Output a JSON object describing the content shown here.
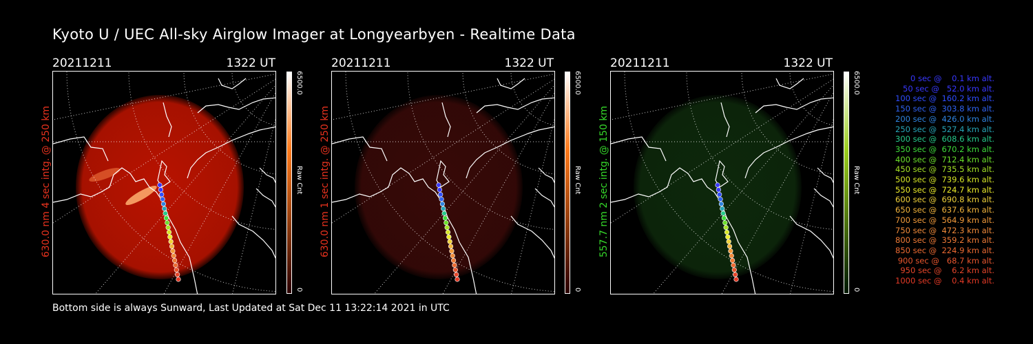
{
  "title": "Kyoto U / UEC All-sky Airglow Imager at Longyearbyen - Realtime Data",
  "footer": "Bottom side is always Sunward, Last Updated at Sat Dec 11 13:22:14 2021 in UTC",
  "panels": [
    {
      "date": "20211211",
      "time": "1322 UT",
      "side_label": "630.0 nm 4 sec intg. @ 250 km",
      "label_color": "#e8321e",
      "glow": "#c21400",
      "glow_opacity": 0.95,
      "colorbar": {
        "top": "6500.0",
        "bottom": "0",
        "unit": "Raw Cnt",
        "gradient_top": "#ffffff",
        "gradient_mid": "#ff7a1a",
        "gradient_bottom": "#2a0000"
      }
    },
    {
      "date": "20211211",
      "time": "1322 UT",
      "side_label": "630.0 nm 1 sec intg. @ 250 km",
      "label_color": "#e8321e",
      "glow": "#3a0a08",
      "glow_opacity": 0.95,
      "colorbar": {
        "top": "6500.0",
        "bottom": "0",
        "unit": "Raw Cnt",
        "gradient_top": "#ffffff",
        "gradient_mid": "#ff7a1a",
        "gradient_bottom": "#2a0000"
      }
    },
    {
      "date": "20211211",
      "time": "1322 UT",
      "side_label": "557.7 nm 2 sec intg. @ 150 km",
      "label_color": "#36d92a",
      "glow": "#0e2a0c",
      "glow_opacity": 0.95,
      "colorbar": {
        "top": "6500.0",
        "bottom": "0",
        "unit": "Raw Cnt",
        "gradient_top": "#ffffff",
        "gradient_mid": "#9ccf1e",
        "gradient_bottom": "#001800"
      }
    }
  ],
  "trajectory_legend": [
    {
      "text": "0 sec @    0.1 km alt.",
      "color": "#3838ff"
    },
    {
      "text": "50 sec @   52.0 km alt.",
      "color": "#3838ff"
    },
    {
      "text": "100 sec @  160.2 km alt.",
      "color": "#2f4dff"
    },
    {
      "text": "150 sec @  303.8 km alt.",
      "color": "#2f62f0"
    },
    {
      "text": "200 sec @  426.0 km alt.",
      "color": "#2f84e0"
    },
    {
      "text": "250 sec @  527.4 km alt.",
      "color": "#27a6b8"
    },
    {
      "text": "300 sec @  608.6 km alt.",
      "color": "#26c98a"
    },
    {
      "text": "350 sec @  670.2 km alt.",
      "color": "#3fdd3a"
    },
    {
      "text": "400 sec @  712.4 km alt.",
      "color": "#6be02a"
    },
    {
      "text": "450 sec @  735.5 km alt.",
      "color": "#a5e226"
    },
    {
      "text": "500 sec @  739.6 km alt.",
      "color": "#d6e626"
    },
    {
      "text": "550 sec @  724.7 km alt.",
      "color": "#ecec2a"
    },
    {
      "text": "600 sec @  690.8 km alt.",
      "color": "#f0d23a"
    },
    {
      "text": "650 sec @  637.6 km alt.",
      "color": "#f2b43c"
    },
    {
      "text": "700 sec @  564.9 km alt.",
      "color": "#f29a3a"
    },
    {
      "text": "750 sec @  472.3 km alt.",
      "color": "#f08a3a"
    },
    {
      "text": "800 sec @  359.2 km alt.",
      "color": "#ee7a36"
    },
    {
      "text": "850 sec @  224.9 km alt.",
      "color": "#ec6a32"
    },
    {
      "text": "900 sec @   68.7 km alt.",
      "color": "#e8562e"
    },
    {
      "text": "950 sec @    6.2 km alt.",
      "color": "#e6462a"
    },
    {
      "text": "1000 sec @    0.4 km alt.",
      "color": "#e43a26"
    }
  ]
}
